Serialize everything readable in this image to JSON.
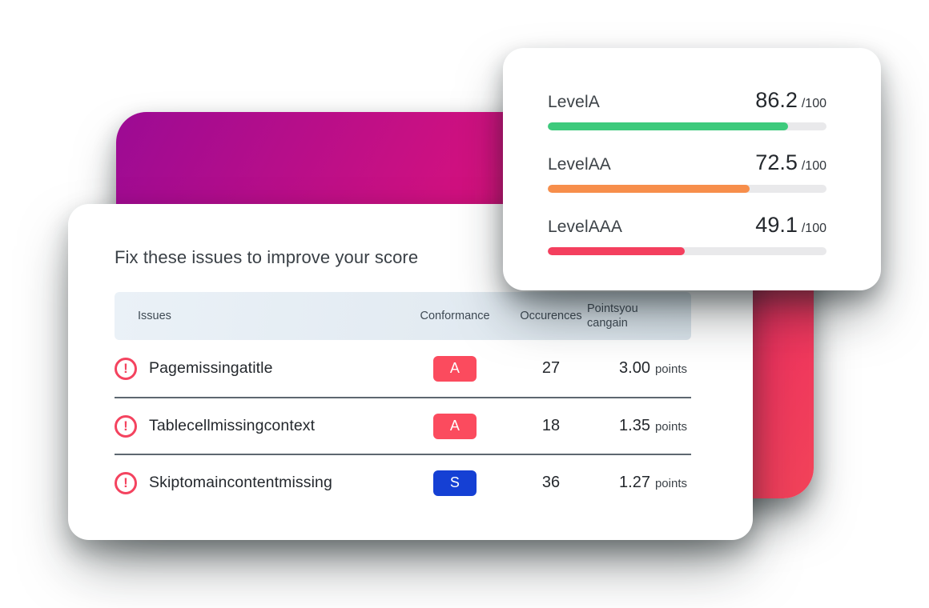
{
  "page": {
    "background": "#ffffff"
  },
  "score_card": {
    "track_color": "#e9e9eb",
    "rows": [
      {
        "label": "LevelA",
        "score": "86.2",
        "out_of": "/100",
        "percent": 86.2,
        "bar_color": "#3dca7c"
      },
      {
        "label": "LevelAA",
        "score": "72.5",
        "out_of": "/100",
        "percent": 72.5,
        "bar_color": "#f78e4b"
      },
      {
        "label": "LevelAAA",
        "score": "49.1",
        "out_of": "/100",
        "percent": 49.1,
        "bar_color": "#f43f5e"
      }
    ]
  },
  "issues_card": {
    "title": "Fix these issues to improve your score",
    "columns": {
      "issues": "Issues",
      "conformance": "Conformance",
      "occurences": "Occurences",
      "points": "Pointsyou cangain"
    },
    "rows": [
      {
        "issue": "Pagemissingatitle",
        "conformance": "A",
        "badge_color": "#fb4b5e",
        "occurences": "27",
        "points": "3.00",
        "points_unit": "points"
      },
      {
        "issue": "Tablecellmissingcontext",
        "conformance": "A",
        "badge_color": "#fb4b5e",
        "occurences": "18",
        "points": "1.35",
        "points_unit": "points"
      },
      {
        "issue": "Skiptomaincontentmissing",
        "conformance": "S",
        "badge_color": "#1540d4",
        "occurences": "36",
        "points": "1.27",
        "points_unit": "points"
      }
    ]
  },
  "icons": {
    "warning_glyph": "!"
  },
  "decor": {
    "gradient_card_colors": [
      "#9e0b93",
      "#d8127d",
      "#f2425a"
    ]
  }
}
